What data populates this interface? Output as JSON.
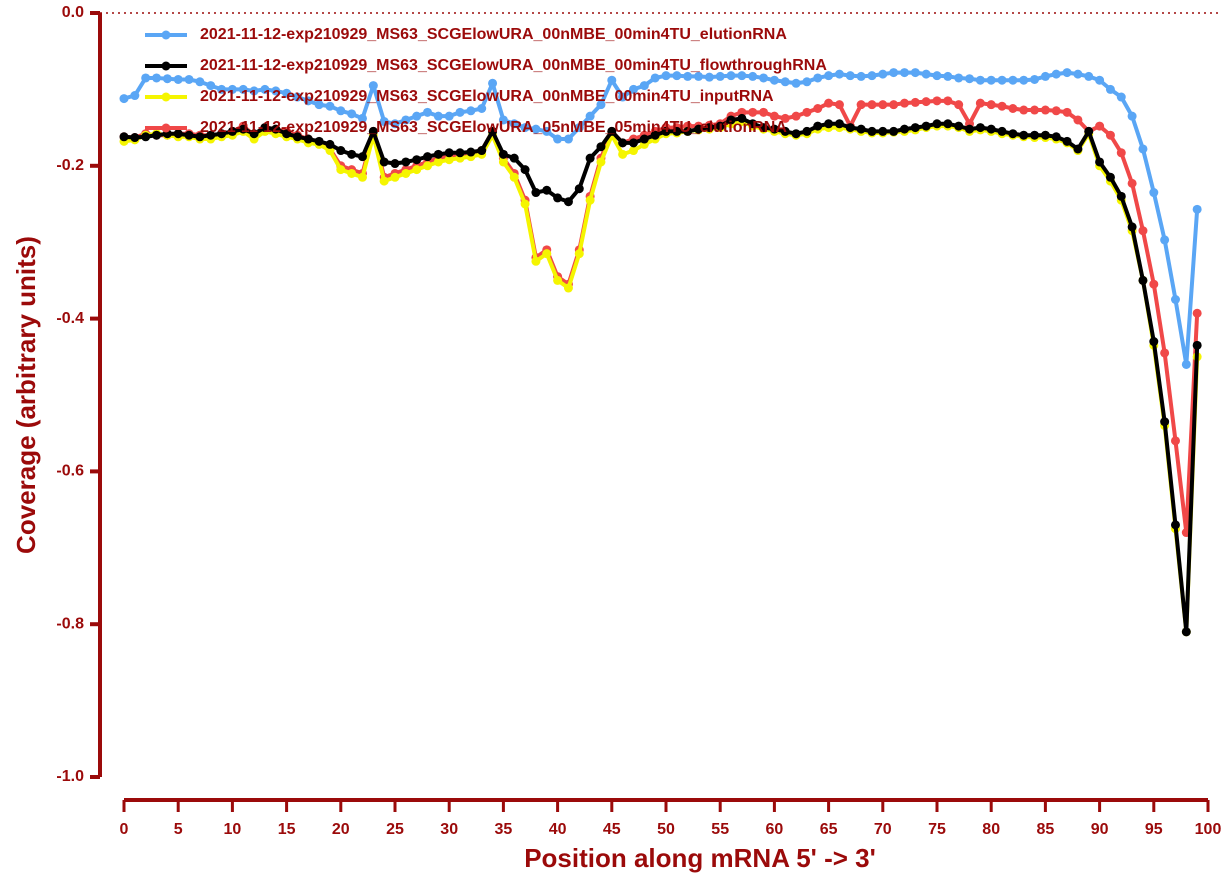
{
  "chart_data": {
    "type": "line",
    "xlabel": "Position along mRNA 5' -> 3'",
    "ylabel": "Coverage (arbitrary units)",
    "x": [
      0,
      1,
      2,
      3,
      4,
      5,
      6,
      7,
      8,
      9,
      10,
      11,
      12,
      13,
      14,
      15,
      16,
      17,
      18,
      19,
      20,
      21,
      22,
      23,
      24,
      25,
      26,
      27,
      28,
      29,
      30,
      31,
      32,
      33,
      34,
      35,
      36,
      37,
      38,
      39,
      40,
      41,
      42,
      43,
      44,
      45,
      46,
      47,
      48,
      49,
      50,
      51,
      52,
      53,
      54,
      55,
      56,
      57,
      58,
      59,
      60,
      61,
      62,
      63,
      64,
      65,
      66,
      67,
      68,
      69,
      70,
      71,
      72,
      73,
      74,
      75,
      76,
      77,
      78,
      79,
      80,
      81,
      82,
      83,
      84,
      85,
      86,
      87,
      88,
      89,
      90,
      91,
      92,
      93,
      94,
      95,
      96,
      97,
      98,
      99
    ],
    "xlim": [
      0,
      100
    ],
    "xticks": [
      0,
      5,
      10,
      15,
      20,
      25,
      30,
      35,
      40,
      45,
      50,
      55,
      60,
      65,
      70,
      75,
      80,
      85,
      90,
      95,
      100
    ],
    "ylim": [
      -1,
      0
    ],
    "yticks": [
      {
        "value": 0,
        "label": "0.0"
      },
      -0.2,
      -0.4,
      -0.6,
      -0.8,
      {
        "value": -1,
        "label": "-1.0"
      }
    ],
    "series": [
      {
        "name": "2021-11-12-exp210929_MS63_SCGElowURA_00nMBE_00min4TU_elutionRNA",
        "color": "#5aa6f5",
        "values": [
          -0.112,
          -0.108,
          -0.085,
          -0.085,
          -0.086,
          -0.087,
          -0.087,
          -0.09,
          -0.095,
          -0.1,
          -0.1,
          -0.1,
          -0.102,
          -0.1,
          -0.102,
          -0.105,
          -0.11,
          -0.115,
          -0.12,
          -0.122,
          -0.128,
          -0.132,
          -0.138,
          -0.095,
          -0.142,
          -0.145,
          -0.14,
          -0.135,
          -0.13,
          -0.135,
          -0.135,
          -0.13,
          -0.128,
          -0.125,
          -0.092,
          -0.14,
          -0.145,
          -0.15,
          -0.152,
          -0.155,
          -0.165,
          -0.165,
          -0.15,
          -0.135,
          -0.12,
          -0.088,
          -0.11,
          -0.1,
          -0.095,
          -0.085,
          -0.082,
          -0.082,
          -0.083,
          -0.083,
          -0.084,
          -0.083,
          -0.082,
          -0.082,
          -0.083,
          -0.085,
          -0.088,
          -0.09,
          -0.092,
          -0.09,
          -0.085,
          -0.082,
          -0.08,
          -0.082,
          -0.083,
          -0.082,
          -0.08,
          -0.078,
          -0.078,
          -0.078,
          -0.08,
          -0.082,
          -0.083,
          -0.085,
          -0.086,
          -0.088,
          -0.088,
          -0.088,
          -0.088,
          -0.088,
          -0.087,
          -0.083,
          -0.08,
          -0.078,
          -0.08,
          -0.083,
          -0.088,
          -0.1,
          -0.11,
          -0.135,
          -0.178,
          -0.235,
          -0.297,
          -0.375,
          -0.46,
          -0.257
        ]
      },
      {
        "name": "2021-11-12-exp210929_MS63_SCGElowURA_00nMBE_00min4TU_flowthroughRNA",
        "color": "#000000",
        "values": [
          -0.162,
          -0.163,
          -0.162,
          -0.16,
          -0.158,
          -0.158,
          -0.16,
          -0.162,
          -0.16,
          -0.158,
          -0.155,
          -0.152,
          -0.158,
          -0.15,
          -0.152,
          -0.158,
          -0.162,
          -0.165,
          -0.168,
          -0.172,
          -0.18,
          -0.185,
          -0.188,
          -0.155,
          -0.195,
          -0.197,
          -0.195,
          -0.192,
          -0.188,
          -0.185,
          -0.183,
          -0.183,
          -0.182,
          -0.18,
          -0.155,
          -0.185,
          -0.19,
          -0.205,
          -0.235,
          -0.232,
          -0.242,
          -0.247,
          -0.23,
          -0.19,
          -0.175,
          -0.155,
          -0.17,
          -0.17,
          -0.165,
          -0.16,
          -0.155,
          -0.155,
          -0.155,
          -0.152,
          -0.15,
          -0.148,
          -0.14,
          -0.138,
          -0.145,
          -0.15,
          -0.152,
          -0.155,
          -0.158,
          -0.155,
          -0.148,
          -0.145,
          -0.145,
          -0.15,
          -0.152,
          -0.155,
          -0.155,
          -0.155,
          -0.152,
          -0.15,
          -0.148,
          -0.145,
          -0.145,
          -0.148,
          -0.152,
          -0.15,
          -0.152,
          -0.155,
          -0.158,
          -0.16,
          -0.16,
          -0.16,
          -0.162,
          -0.168,
          -0.178,
          -0.155,
          -0.195,
          -0.215,
          -0.24,
          -0.28,
          -0.35,
          -0.43,
          -0.535,
          -0.67,
          -0.81,
          -0.435
        ]
      },
      {
        "name": "2021-11-12-exp210929_MS63_SCGElowURA_00nMBE_00min4TU_inputRNA",
        "color": "#f5f500",
        "values": [
          -0.168,
          -0.166,
          -0.16,
          -0.158,
          -0.16,
          -0.162,
          -0.162,
          -0.165,
          -0.165,
          -0.162,
          -0.16,
          -0.155,
          -0.165,
          -0.155,
          -0.158,
          -0.162,
          -0.165,
          -0.17,
          -0.172,
          -0.18,
          -0.205,
          -0.21,
          -0.215,
          -0.16,
          -0.22,
          -0.215,
          -0.21,
          -0.205,
          -0.2,
          -0.195,
          -0.192,
          -0.19,
          -0.188,
          -0.185,
          -0.16,
          -0.195,
          -0.215,
          -0.25,
          -0.325,
          -0.315,
          -0.35,
          -0.36,
          -0.315,
          -0.245,
          -0.195,
          -0.16,
          -0.185,
          -0.18,
          -0.172,
          -0.165,
          -0.158,
          -0.157,
          -0.155,
          -0.153,
          -0.152,
          -0.15,
          -0.145,
          -0.142,
          -0.148,
          -0.152,
          -0.155,
          -0.158,
          -0.16,
          -0.158,
          -0.152,
          -0.15,
          -0.15,
          -0.152,
          -0.155,
          -0.157,
          -0.157,
          -0.156,
          -0.155,
          -0.153,
          -0.15,
          -0.148,
          -0.148,
          -0.15,
          -0.155,
          -0.153,
          -0.155,
          -0.158,
          -0.16,
          -0.162,
          -0.163,
          -0.163,
          -0.165,
          -0.17,
          -0.18,
          -0.158,
          -0.2,
          -0.22,
          -0.245,
          -0.285,
          -0.35,
          -0.435,
          -0.54,
          -0.675,
          -0.81,
          -0.45
        ]
      },
      {
        "name": "2021-11-12-exp210929_MS63_SCGElowURA_05nMBE_05min4TU_elutionRNA",
        "color": "#f04848",
        "values": [
          -0.162,
          -0.163,
          -0.158,
          -0.16,
          -0.16,
          -0.158,
          -0.158,
          -0.16,
          -0.16,
          -0.158,
          -0.155,
          -0.148,
          -0.16,
          -0.15,
          -0.152,
          -0.155,
          -0.16,
          -0.165,
          -0.17,
          -0.178,
          -0.2,
          -0.205,
          -0.21,
          -0.155,
          -0.215,
          -0.21,
          -0.205,
          -0.2,
          -0.195,
          -0.19,
          -0.188,
          -0.185,
          -0.183,
          -0.18,
          -0.155,
          -0.19,
          -0.21,
          -0.245,
          -0.32,
          -0.31,
          -0.345,
          -0.355,
          -0.31,
          -0.24,
          -0.19,
          -0.155,
          -0.17,
          -0.165,
          -0.16,
          -0.155,
          -0.15,
          -0.15,
          -0.148,
          -0.148,
          -0.147,
          -0.145,
          -0.135,
          -0.13,
          -0.13,
          -0.13,
          -0.135,
          -0.138,
          -0.135,
          -0.13,
          -0.125,
          -0.118,
          -0.12,
          -0.148,
          -0.12,
          -0.12,
          -0.12,
          -0.12,
          -0.118,
          -0.117,
          -0.116,
          -0.115,
          -0.115,
          -0.12,
          -0.145,
          -0.118,
          -0.12,
          -0.122,
          -0.125,
          -0.127,
          -0.127,
          -0.127,
          -0.128,
          -0.13,
          -0.14,
          -0.155,
          -0.148,
          -0.16,
          -0.183,
          -0.223,
          -0.285,
          -0.355,
          -0.445,
          -0.56,
          -0.68,
          -0.393
        ]
      }
    ]
  }
}
